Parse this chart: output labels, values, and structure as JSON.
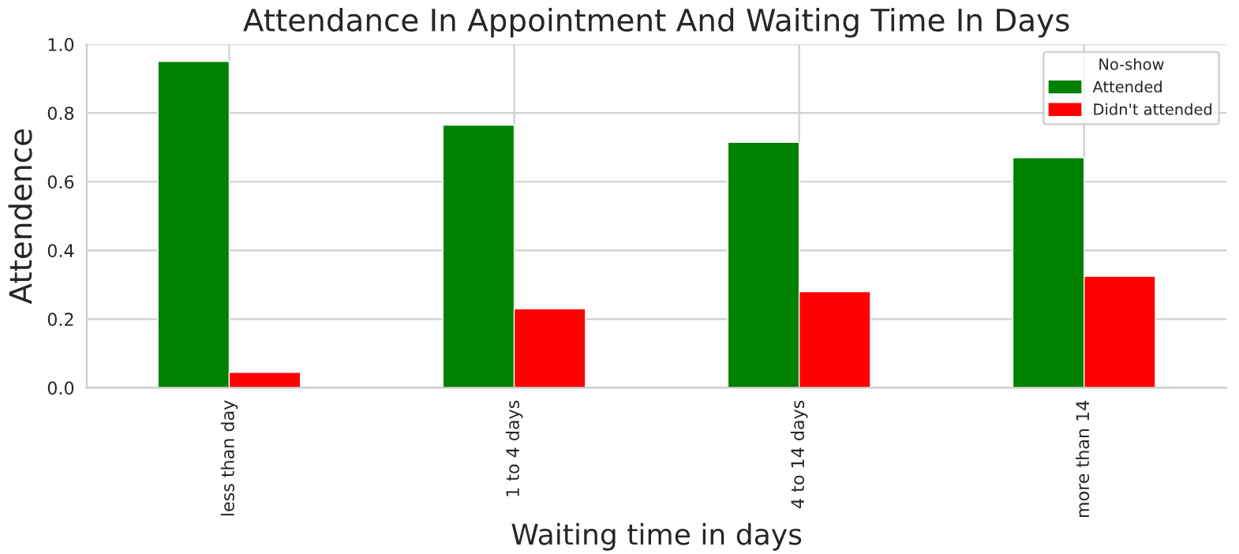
{
  "chart_data": {
    "type": "bar",
    "title": "Attendance In Appointment And Waiting Time In Days",
    "xlabel": "Waiting time in days",
    "ylabel": "Attendence",
    "legend_title": "No-show",
    "categories": [
      "less than day",
      "1 to 4 days",
      "4 to 14 days",
      "more than 14"
    ],
    "series": [
      {
        "name": "Attended",
        "color": "#008000",
        "values": [
          0.95,
          0.765,
          0.715,
          0.67
        ]
      },
      {
        "name": "Didn't attended",
        "color": "#ff0000",
        "values": [
          0.045,
          0.23,
          0.28,
          0.325
        ]
      }
    ],
    "ylim": [
      0,
      1
    ],
    "yticks": [
      {
        "value": 0,
        "label": "0.0"
      },
      0.2,
      0.4,
      0.6,
      0.8,
      {
        "value": 1,
        "label": "1.0"
      }
    ],
    "grid": true,
    "legend": "top right"
  }
}
